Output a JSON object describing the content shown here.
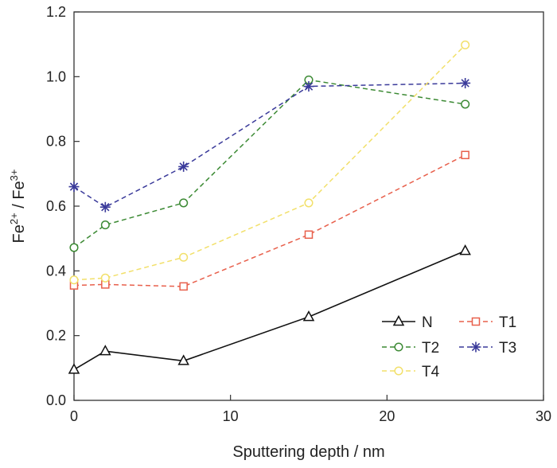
{
  "chart_data": {
    "type": "line",
    "xlabel": "Sputtering depth / nm",
    "ylabel": {
      "base1": "Fe",
      "sup1": "2+",
      "mid": " / Fe",
      "sup2": "3+"
    },
    "xlim": [
      0,
      30
    ],
    "ylim": [
      0.0,
      1.2
    ],
    "xticks": [
      0,
      10,
      20,
      30
    ],
    "yticks": [
      0.0,
      0.2,
      0.4,
      0.6,
      0.8,
      1.0,
      1.2
    ],
    "ytick_labels": [
      "0.0",
      "0.2",
      "0.4",
      "0.6",
      "0.8",
      "1.0",
      "1.2"
    ],
    "grid": false,
    "legend_position": "bottom-right",
    "x": [
      0,
      2,
      7,
      15,
      25
    ],
    "series": [
      {
        "name": "N",
        "marker": "triangle",
        "dash": "solid",
        "color": "#111111",
        "values": [
          0.095,
          0.152,
          0.122,
          0.258,
          0.462
        ]
      },
      {
        "name": "T1",
        "marker": "square",
        "dash": "dashed",
        "color": "#E8604C",
        "values": [
          0.355,
          0.358,
          0.352,
          0.512,
          0.758
        ]
      },
      {
        "name": "T2",
        "marker": "circle",
        "dash": "dashed",
        "color": "#3C8A34",
        "values": [
          0.472,
          0.542,
          0.61,
          0.99,
          0.915
        ]
      },
      {
        "name": "T3",
        "marker": "asterisk",
        "dash": "dashed",
        "color": "#3A3A9A",
        "values": [
          0.66,
          0.597,
          0.722,
          0.97,
          0.98
        ]
      },
      {
        "name": "T4",
        "marker": "circle",
        "dash": "dashed",
        "color": "#F2E06A",
        "values": [
          0.372,
          0.378,
          0.442,
          0.61,
          1.098
        ]
      }
    ]
  }
}
